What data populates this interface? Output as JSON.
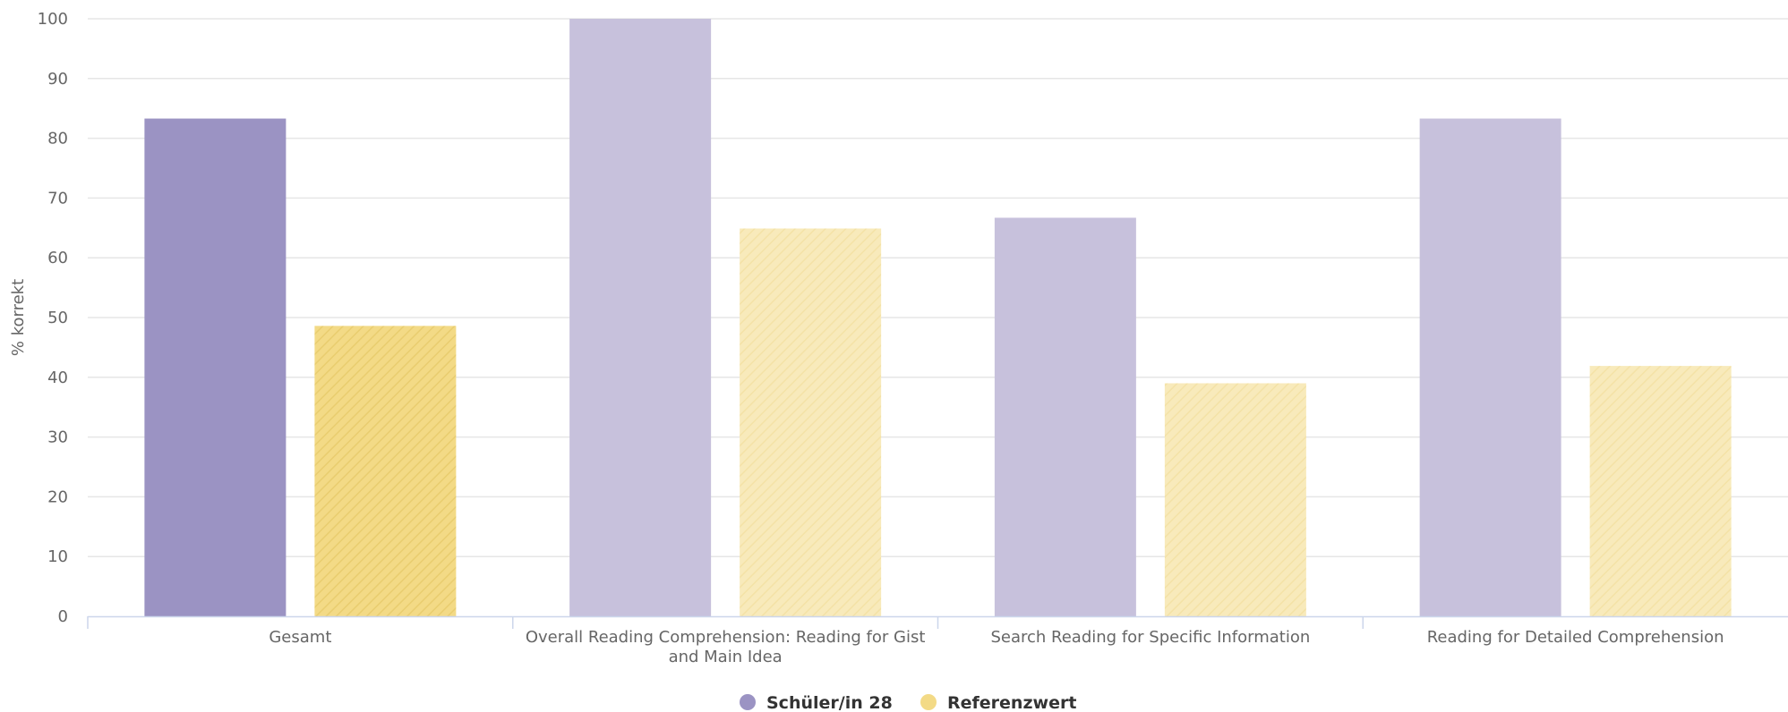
{
  "chart_data": {
    "type": "bar",
    "ylabel": "% korrekt",
    "ylim": [
      0,
      100
    ],
    "yticks": [
      0,
      10,
      20,
      30,
      40,
      50,
      60,
      70,
      80,
      90,
      100
    ],
    "grid": true,
    "legend_position": "bottom-center",
    "categories": [
      "Gesamt",
      "Overall Reading Comprehension: Reading for Gist and Main Idea",
      "Search Reading for Specific Information",
      "Reading for Detailed Comprehension"
    ],
    "series": [
      {
        "name": "Schüler/in 28",
        "color": "#9b93c3",
        "values": [
          83.3,
          100,
          66.7,
          83.3
        ]
      },
      {
        "name": "Referenzwert",
        "color": "#f2da86",
        "values": [
          48.6,
          64.9,
          39.0,
          41.9
        ],
        "pattern": "diagonal-hatch"
      }
    ]
  }
}
